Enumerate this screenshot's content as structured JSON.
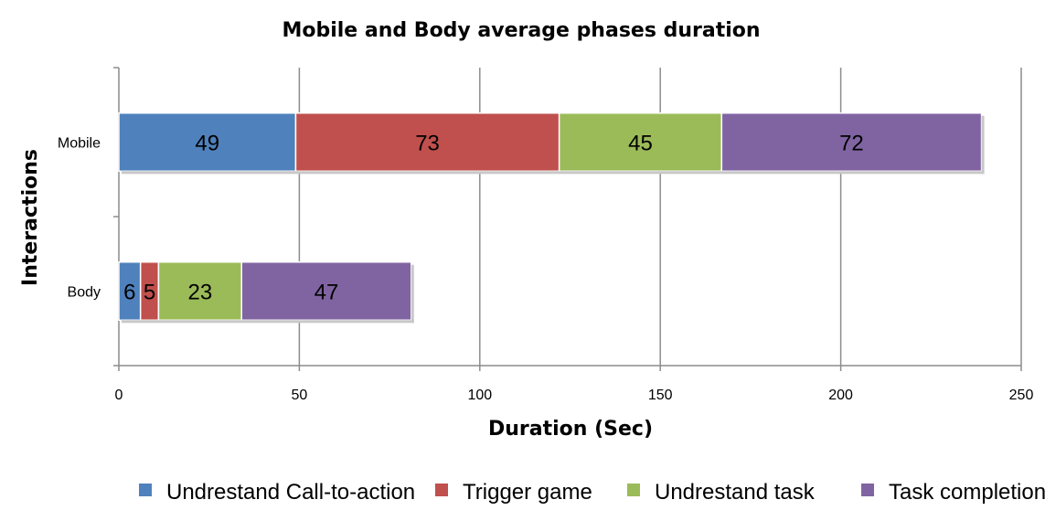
{
  "chart_data": {
    "type": "bar",
    "orientation": "horizontal",
    "stacked": true,
    "title": "Mobile and Body average phases duration",
    "xlabel": "Duration (Sec)",
    "ylabel": "Interactions",
    "categories": [
      "Mobile",
      "Body"
    ],
    "xlim": [
      0,
      250
    ],
    "x_ticks": [
      "0",
      "50",
      "100",
      "150",
      "200",
      "250"
    ],
    "grid": "vertical",
    "legend_position": "bottom",
    "series": [
      {
        "name": "Undrestand Call-to-action",
        "values": [
          49,
          6
        ],
        "labels": [
          "49",
          "6"
        ],
        "color": "#4f81bd"
      },
      {
        "name": "Trigger game",
        "values": [
          73,
          5
        ],
        "labels": [
          "73",
          "5"
        ],
        "color": "#c0504d"
      },
      {
        "name": "Undrestand task",
        "values": [
          45,
          23
        ],
        "labels": [
          "45",
          "23"
        ],
        "color": "#9bbb59"
      },
      {
        "name": "Task completion",
        "values": [
          72,
          47
        ],
        "labels": [
          "72",
          "47"
        ],
        "color": "#8064a2"
      }
    ]
  }
}
